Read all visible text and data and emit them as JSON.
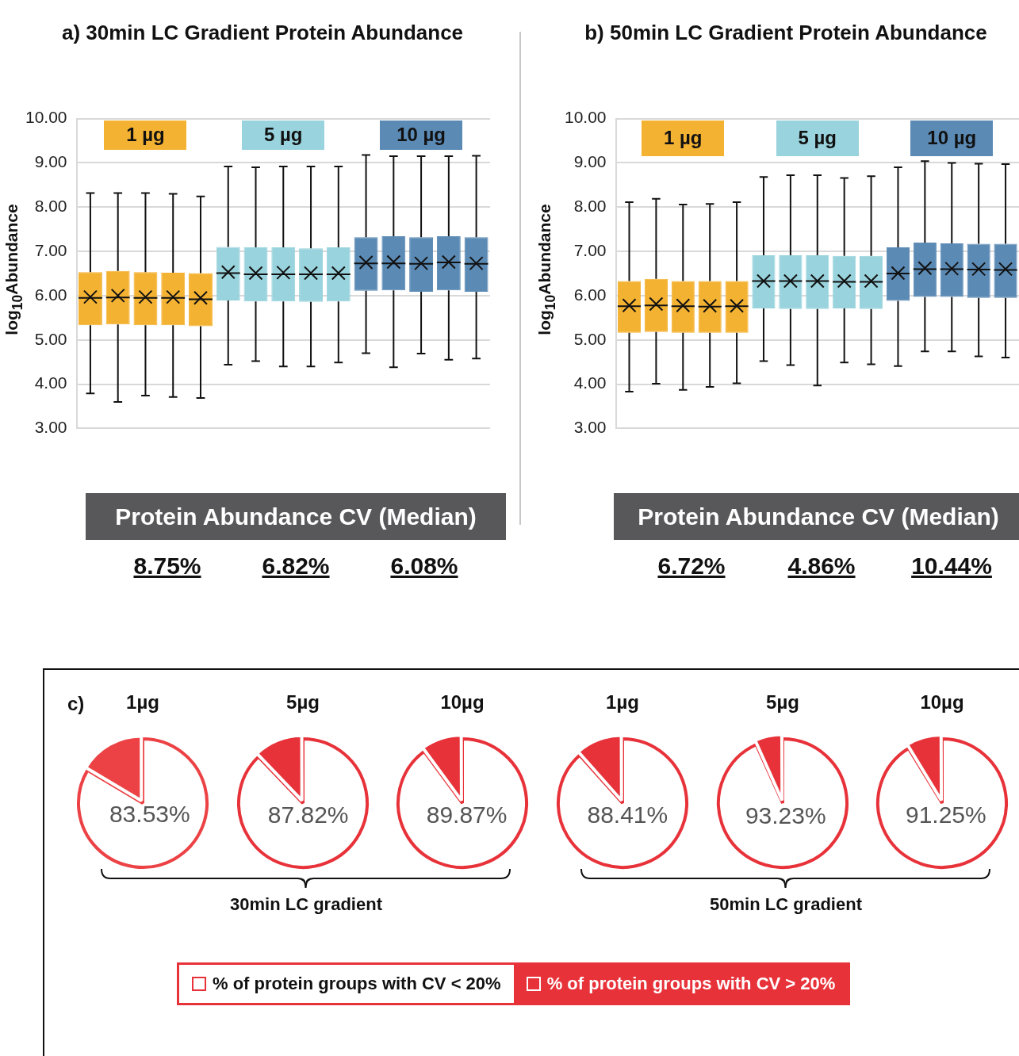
{
  "chart_data": [
    {
      "type": "box",
      "title": "a) 30min LC Gradient Protein Abundance",
      "ylabel": "log$_{10}$Abundance",
      "categories": [
        null,
        null,
        null,
        null,
        null,
        null,
        null,
        null,
        null,
        null,
        null,
        null,
        null,
        null,
        null
      ],
      "ylim": [
        3,
        10
      ],
      "yticks": [
        {
          "value": 3,
          "label": "3.00"
        },
        {
          "value": 4,
          "label": "4.00"
        },
        {
          "value": 5,
          "label": "5.00"
        },
        {
          "value": 6,
          "label": "6.00"
        },
        {
          "value": 7,
          "label": "7.00"
        },
        {
          "value": 8,
          "label": "8.00"
        },
        {
          "value": 9,
          "label": "9.00"
        },
        {
          "value": 10,
          "label": "10.00"
        }
      ],
      "grid": "y",
      "legend": "top",
      "annotations": [
        "Protein Abundance CV (Median)",
        "8.75%",
        "6.82%",
        "6.08%"
      ],
      "series": [
        {
          "name": "1 µg",
          "color": "#f4b233",
          "boxes": [
            {
              "low": 3.79,
              "q1": 5.33,
              "median": 5.95,
              "q3": 6.53,
              "high": 8.32,
              "mean": 5.97
            },
            {
              "low": 3.6,
              "q1": 5.35,
              "median": 5.96,
              "q3": 6.56,
              "high": 8.32,
              "mean": 6.0
            },
            {
              "low": 3.74,
              "q1": 5.33,
              "median": 5.95,
              "q3": 6.53,
              "high": 8.32,
              "mean": 5.97
            },
            {
              "low": 3.71,
              "q1": 5.33,
              "median": 5.95,
              "q3": 6.52,
              "high": 8.3,
              "mean": 5.97
            },
            {
              "low": 3.69,
              "q1": 5.31,
              "median": 5.92,
              "q3": 6.51,
              "high": 8.24,
              "mean": 5.95
            },
            null,
            null,
            null,
            null,
            null,
            null,
            null,
            null,
            null,
            null
          ]
        },
        {
          "name": "5 µg",
          "color": "#99d3dd",
          "boxes": [
            null,
            null,
            null,
            null,
            null,
            {
              "low": 4.44,
              "q1": 5.89,
              "median": 6.51,
              "q3": 7.1,
              "high": 8.92,
              "mean": 6.53
            },
            {
              "low": 4.52,
              "q1": 5.87,
              "median": 6.48,
              "q3": 7.09,
              "high": 8.9,
              "mean": 6.51
            },
            {
              "low": 4.4,
              "q1": 5.87,
              "median": 6.48,
              "q3": 7.09,
              "high": 8.92,
              "mean": 6.52
            },
            {
              "low": 4.4,
              "q1": 5.86,
              "median": 6.48,
              "q3": 7.07,
              "high": 8.92,
              "mean": 6.51
            },
            {
              "low": 4.49,
              "q1": 5.87,
              "median": 6.48,
              "q3": 7.09,
              "high": 8.92,
              "mean": 6.51
            },
            null,
            null,
            null,
            null,
            null
          ]
        },
        {
          "name": "10 µg",
          "color": "#5b8ab5",
          "boxes": [
            null,
            null,
            null,
            null,
            null,
            null,
            null,
            null,
            null,
            null,
            {
              "low": 4.7,
              "q1": 6.11,
              "median": 6.73,
              "q3": 7.32,
              "high": 9.18,
              "mean": 6.75
            },
            {
              "low": 4.38,
              "q1": 6.12,
              "median": 6.73,
              "q3": 7.34,
              "high": 9.15,
              "mean": 6.76
            },
            {
              "low": 4.69,
              "q1": 6.09,
              "median": 6.72,
              "q3": 7.32,
              "high": 9.15,
              "mean": 6.73
            },
            {
              "low": 4.55,
              "q1": 6.12,
              "median": 6.75,
              "q3": 7.34,
              "high": 9.15,
              "mean": 6.76
            },
            {
              "low": 4.58,
              "q1": 6.09,
              "median": 6.72,
              "q3": 7.32,
              "high": 9.16,
              "mean": 6.73
            }
          ]
        }
      ]
    },
    {
      "type": "box",
      "title": "b) 50min LC Gradient Protein Abundance",
      "ylabel": "log$_{10}$Abundance",
      "categories": [
        null,
        null,
        null,
        null,
        null,
        null,
        null,
        null,
        null,
        null,
        null,
        null,
        null,
        null,
        null
      ],
      "ylim": [
        3,
        10
      ],
      "yticks": [
        {
          "value": 3,
          "label": "3.00"
        },
        {
          "value": 4,
          "label": "4.00"
        },
        {
          "value": 5,
          "label": "5.00"
        },
        {
          "value": 6,
          "label": "6.00"
        },
        {
          "value": 7,
          "label": "7.00"
        },
        {
          "value": 8,
          "label": "8.00"
        },
        {
          "value": 9,
          "label": "9.00"
        },
        {
          "value": 10,
          "label": "10.00"
        }
      ],
      "grid": "y",
      "legend": "top",
      "annotations": [
        "Protein Abundance CV (Median)",
        "6.72%",
        "4.86%",
        "10.44%"
      ],
      "series": [
        {
          "name": "1 µg",
          "color": "#f4b233",
          "boxes": [
            {
              "low": 3.83,
              "q1": 5.16,
              "median": 5.76,
              "q3": 6.33,
              "high": 8.11,
              "mean": 5.78
            },
            {
              "low": 4.01,
              "q1": 5.18,
              "median": 5.78,
              "q3": 6.38,
              "high": 8.19,
              "mean": 5.81
            },
            {
              "low": 3.87,
              "q1": 5.16,
              "median": 5.76,
              "q3": 6.33,
              "high": 8.06,
              "mean": 5.78
            },
            {
              "low": 3.94,
              "q1": 5.16,
              "median": 5.75,
              "q3": 6.33,
              "high": 8.07,
              "mean": 5.77
            },
            {
              "low": 4.02,
              "q1": 5.16,
              "median": 5.76,
              "q3": 6.33,
              "high": 8.11,
              "mean": 5.77
            },
            null,
            null,
            null,
            null,
            null,
            null,
            null,
            null,
            null,
            null
          ]
        },
        {
          "name": "5 µg",
          "color": "#99d3dd",
          "boxes": [
            null,
            null,
            null,
            null,
            null,
            {
              "low": 4.52,
              "q1": 5.71,
              "median": 6.33,
              "q3": 6.91,
              "high": 8.68,
              "mean": 6.33
            },
            {
              "low": 4.43,
              "q1": 5.7,
              "median": 6.33,
              "q3": 6.91,
              "high": 8.72,
              "mean": 6.33
            },
            {
              "low": 3.97,
              "q1": 5.7,
              "median": 6.33,
              "q3": 6.91,
              "high": 8.72,
              "mean": 6.33
            },
            {
              "low": 4.49,
              "q1": 5.71,
              "median": 6.31,
              "q3": 6.9,
              "high": 8.66,
              "mean": 6.33
            },
            {
              "low": 4.45,
              "q1": 5.7,
              "median": 6.31,
              "q3": 6.9,
              "high": 8.7,
              "mean": 6.33
            },
            null,
            null,
            null,
            null,
            null
          ]
        },
        {
          "name": "10 µg",
          "color": "#5b8ab5",
          "boxes": [
            null,
            null,
            null,
            null,
            null,
            null,
            null,
            null,
            null,
            null,
            {
              "low": 4.41,
              "q1": 5.88,
              "median": 6.5,
              "q3": 7.09,
              "high": 8.9,
              "mean": 6.51
            },
            {
              "low": 4.74,
              "q1": 5.97,
              "median": 6.6,
              "q3": 7.2,
              "high": 9.04,
              "mean": 6.62
            },
            {
              "low": 4.74,
              "q1": 5.97,
              "median": 6.6,
              "q3": 7.18,
              "high": 9.0,
              "mean": 6.61
            },
            {
              "low": 4.63,
              "q1": 5.95,
              "median": 6.59,
              "q3": 7.17,
              "high": 8.98,
              "mean": 6.6
            },
            {
              "low": 4.6,
              "q1": 5.95,
              "median": 6.58,
              "q3": 7.17,
              "high": 8.97,
              "mean": 6.6
            }
          ]
        }
      ]
    },
    {
      "type": "pie",
      "title": "1µg",
      "values": [
        83.53,
        16.47
      ],
      "colors": [
        "#ffffff",
        "#ec4245"
      ],
      "value_labels": [
        "83.53%",
        null
      ],
      "annotations": [
        "c)"
      ]
    },
    {
      "type": "pie",
      "title": "5µg",
      "values": [
        87.82,
        12.18
      ],
      "colors": [
        "#ffffff",
        "#e8323a"
      ],
      "value_labels": [
        "87.82%",
        null
      ],
      "annotations": [
        "30min LC gradient"
      ]
    },
    {
      "type": "pie",
      "title": "10µg",
      "values": [
        89.87,
        10.13
      ],
      "colors": [
        "#ffffff",
        "#e8323a"
      ],
      "value_labels": [
        "89.87%",
        null
      ]
    },
    {
      "type": "pie",
      "title": "1µg",
      "values": [
        88.41,
        11.59
      ],
      "colors": [
        "#ffffff",
        "#e8323a"
      ],
      "value_labels": [
        "88.41%",
        null
      ]
    },
    {
      "type": "pie",
      "title": "5µg",
      "values": [
        93.23,
        6.77
      ],
      "colors": [
        "#ffffff",
        "#e8323a"
      ],
      "value_labels": [
        "93.23%",
        null
      ],
      "annotations": [
        "50min LC gradient"
      ]
    },
    {
      "type": "pie",
      "title": "10µg",
      "categories": [
        "% of protein groups with CV < 20%",
        "% of protein groups with CV > 20%"
      ],
      "values": [
        91.25,
        8.75
      ],
      "colors": [
        "#ffffff",
        "#e8323a"
      ],
      "value_labels": [
        "91.25%",
        null
      ],
      "legend": "bottom"
    }
  ]
}
